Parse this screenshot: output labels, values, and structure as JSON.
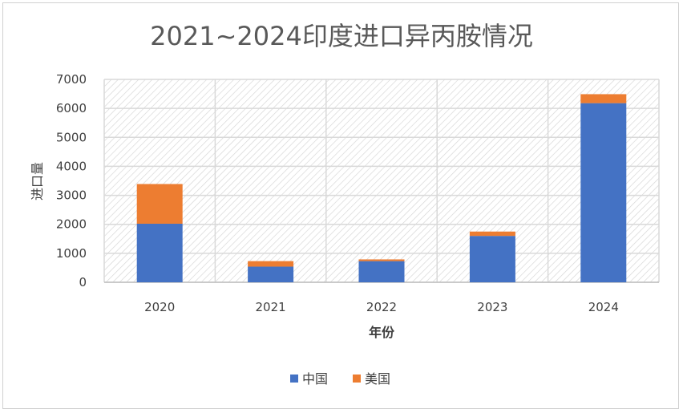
{
  "chart_data": {
    "type": "bar",
    "stacked": true,
    "title": "2021~2024印度进口异丙胺情况",
    "xlabel": "年份",
    "ylabel": "进口量",
    "categories": [
      "2020",
      "2021",
      "2022",
      "2023",
      "2024"
    ],
    "series": [
      {
        "name": "中国",
        "color": "#4472C4",
        "values": [
          2020,
          540,
          730,
          1600,
          6180
        ]
      },
      {
        "name": "美国",
        "color": "#ED7D31",
        "values": [
          1370,
          190,
          60,
          150,
          310
        ]
      }
    ],
    "ylim": [
      0,
      7000
    ],
    "yticks": [
      0,
      1000,
      2000,
      3000,
      4000,
      5000,
      6000,
      7000
    ],
    "grid": true,
    "legend": "bottom"
  }
}
